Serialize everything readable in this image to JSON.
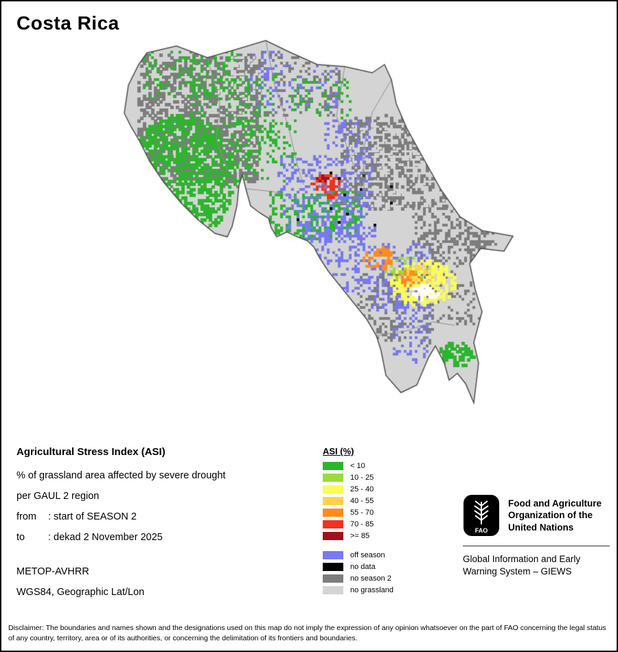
{
  "page": {
    "title": "Costa Rica"
  },
  "info": {
    "heading": "Agricultural Stress Index (ASI)",
    "line1": "% of grassland area affected by severe drought",
    "line2": "per GAUL 2 region",
    "from_label": "from",
    "from_value": ": start of SEASON 2",
    "to_label": "to",
    "to_value": ": dekad 2 November 2025",
    "sensor": "METOP-AVHRR",
    "projection": "WGS84, Geographic Lat/Lon"
  },
  "legend": {
    "title": "ASI (%)",
    "items": [
      {
        "label": "< 10",
        "color": "#2DB52D"
      },
      {
        "label": "10 - 25",
        "color": "#9CDB3C"
      },
      {
        "label": "25 - 40",
        "color": "#FBFB5A"
      },
      {
        "label": "40 - 55",
        "color": "#FFD24A"
      },
      {
        "label": "55 - 70",
        "color": "#FF8C1A"
      },
      {
        "label": "70 - 85",
        "color": "#F0331F"
      },
      {
        "label": ">= 85",
        "color": "#A31218"
      }
    ],
    "status_items": [
      {
        "label": "off season",
        "color": "#7879F0"
      },
      {
        "label": "no data",
        "color": "#000000"
      },
      {
        "label": "no season 2",
        "color": "#7D7D7D"
      },
      {
        "label": "no grassland",
        "color": "#D4D4D4"
      }
    ]
  },
  "fao": {
    "logo_text": "FAO",
    "org_name": "Food and Agriculture Organization of the United Nations",
    "system_name": "Global Information and Early Warning System – GIEWS"
  },
  "disclaimer": "Disclaimer: The boundaries and names shown and the designations used on this map do not imply the expression of any opinion whatsoever on the part of FAO concerning the legal status of any country, territory, area or of its authorities, or concerning the delimitation of its frontiers and boundaries."
}
